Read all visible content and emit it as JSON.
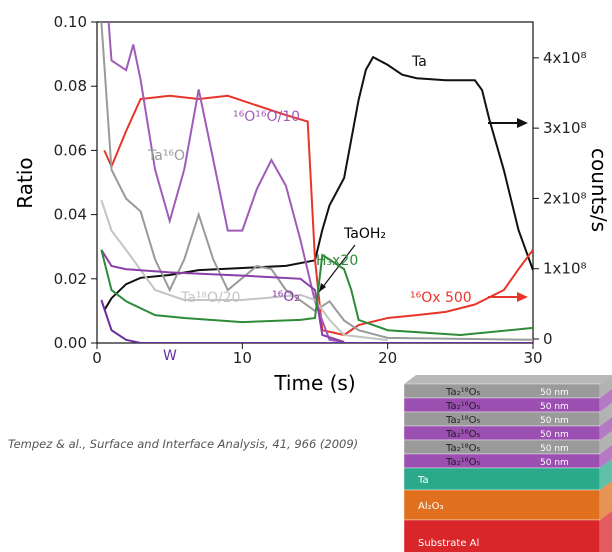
{
  "chart_data": {
    "type": "line",
    "x_label": "Time (s)",
    "y_label": "Ratio",
    "y2_label": "counts/s",
    "xlim": [
      0,
      30
    ],
    "xticks": [
      0,
      10,
      20,
      30
    ],
    "ylim": [
      0,
      0.1
    ],
    "yticks": [
      {
        "value": 0,
        "label": "0.00"
      },
      {
        "value": 0.02,
        "label": "0.02"
      },
      {
        "value": 0.04,
        "label": "0.04"
      },
      {
        "value": 0.06,
        "label": "0.06"
      },
      {
        "value": 0.08,
        "label": "0.08"
      },
      {
        "value": 0.1,
        "label": "0.10"
      }
    ],
    "y2lim": [
      -5700000,
      451000000
    ],
    "y2ticks": [
      0,
      {
        "value": 100000000,
        "label": "1x10⁸"
      },
      {
        "value": 200000000,
        "label": "2x10⁸"
      },
      {
        "value": 300000000,
        "label": "3x10⁸"
      },
      {
        "value": 400000000,
        "label": "4x10⁸"
      }
    ],
    "annotations": [
      "TaOH₂"
    ],
    "series": [
      {
        "name": "Ta",
        "color": "#111111",
        "axis": "y2",
        "x": [
          0.5,
          1,
          2,
          3,
          5,
          7,
          10,
          13,
          15,
          15.5,
          16,
          17,
          18,
          18.5,
          19,
          20,
          21,
          22,
          24,
          26,
          26.5,
          27,
          28,
          29,
          30
        ],
        "values": [
          41000000,
          58000000,
          78000000,
          87000000,
          91000000,
          98000000,
          101000000,
          104000000,
          112000000,
          155000000,
          190000000,
          229000000,
          340000000,
          383000000,
          401000000,
          390000000,
          376000000,
          371000000,
          368000000,
          368000000,
          354000000,
          312000000,
          240000000,
          155000000,
          98000000
        ]
      },
      {
        "name": "¹⁶Ox 500",
        "color": "#e8352a",
        "x": [
          0.5,
          1,
          2,
          3,
          5,
          7,
          9,
          11,
          13,
          14.5,
          15,
          15.5,
          17,
          18,
          20,
          22,
          24,
          26,
          28,
          29,
          30
        ],
        "values": [
          0.06,
          0.055,
          0.066,
          0.076,
          0.077,
          0.076,
          0.077,
          0.074,
          0.071,
          0.069,
          0.026,
          0.004,
          0.0025,
          0.0056,
          0.0078,
          0.0087,
          0.0097,
          0.012,
          0.0165,
          0.023,
          0.029
        ]
      },
      {
        "name": "¹⁶O¹⁶O/10",
        "color": "#a05cb8",
        "x": [
          0.8,
          1,
          2,
          2.5,
          3,
          4,
          5,
          6,
          7,
          8,
          9,
          10,
          11,
          12,
          13,
          14,
          15,
          16,
          17
        ],
        "values": [
          0.1,
          0.088,
          0.085,
          0.093,
          0.082,
          0.054,
          0.038,
          0.054,
          0.079,
          0.057,
          0.035,
          0.035,
          0.048,
          0.057,
          0.049,
          0.032,
          0.013,
          0.001,
          0.0003
        ]
      },
      {
        "name": "Ta¹⁶O",
        "color": "#9a9a9a",
        "x": [
          0.3,
          1,
          2,
          3,
          4,
          5,
          6,
          7,
          8,
          9,
          11,
          12,
          13,
          15,
          16,
          17,
          18,
          20,
          30
        ],
        "values": [
          0.1,
          0.054,
          0.045,
          0.041,
          0.026,
          0.0165,
          0.026,
          0.04,
          0.026,
          0.0165,
          0.024,
          0.023,
          0.0165,
          0.01,
          0.013,
          0.007,
          0.004,
          0.0016,
          0.001
        ]
      },
      {
        "name": "Ta¹⁸O/20",
        "color": "#c4c4c4",
        "x": [
          0.3,
          1,
          2,
          4,
          6,
          10,
          14,
          15,
          16,
          17,
          20
        ],
        "values": [
          0.0445,
          0.035,
          0.029,
          0.0165,
          0.0134,
          0.0134,
          0.015,
          0.0134,
          0.0072,
          0.0025,
          0.0009
        ]
      },
      {
        "name": "¹⁶O₂",
        "color": "#8a3fa8",
        "x": [
          0.3,
          1,
          2,
          5,
          10,
          14,
          15,
          15.5,
          17
        ],
        "values": [
          0.029,
          0.024,
          0.023,
          0.022,
          0.021,
          0.02,
          0.0165,
          0.0025,
          0.0003
        ]
      },
      {
        "name": "H₃x20",
        "color": "#2e8b3a",
        "x": [
          0.3,
          1,
          2,
          4,
          6,
          10,
          14,
          15,
          15.5,
          16,
          17,
          17.5,
          18,
          20,
          25,
          30
        ],
        "values": [
          0.029,
          0.0165,
          0.013,
          0.0087,
          0.0078,
          0.0065,
          0.0072,
          0.0078,
          0.0274,
          0.026,
          0.023,
          0.0165,
          0.0072,
          0.004,
          0.0025,
          0.0047
        ]
      },
      {
        "name": "W",
        "color": "#6a2fa0",
        "x": [
          0.3,
          1,
          2,
          3,
          30
        ],
        "values": [
          0.0134,
          0.004,
          0.001,
          0,
          0
        ]
      }
    ]
  },
  "citation": "Tempez & al., Surface and Interface Analysis, 41, 966 (2009)",
  "layer_stack": [
    {
      "label": "Ta₂¹⁸O₅",
      "thickness": "50 nm",
      "color": "#9a9a9a"
    },
    {
      "label": "Ta₂¹⁶O₅",
      "thickness": "50 nm",
      "color": "#9b4fb0"
    },
    {
      "label": "Ta₂¹⁸O₅",
      "thickness": "50 nm",
      "color": "#9a9a9a"
    },
    {
      "label": "Ta₂¹⁶O₅",
      "thickness": "50 nm",
      "color": "#9b4fb0"
    },
    {
      "label": "Ta₂¹⁸O₅",
      "thickness": "50 nm",
      "color": "#9a9a9a"
    },
    {
      "label": "Ta₂¹⁶O₅",
      "thickness": "50 nm",
      "color": "#9b4fb0"
    },
    {
      "label": "Ta",
      "color": "#2aaa8a"
    },
    {
      "label": "Al₂O₃",
      "color": "#e0701e"
    },
    {
      "label": "Substrate Al",
      "color": "#d9262b"
    }
  ]
}
